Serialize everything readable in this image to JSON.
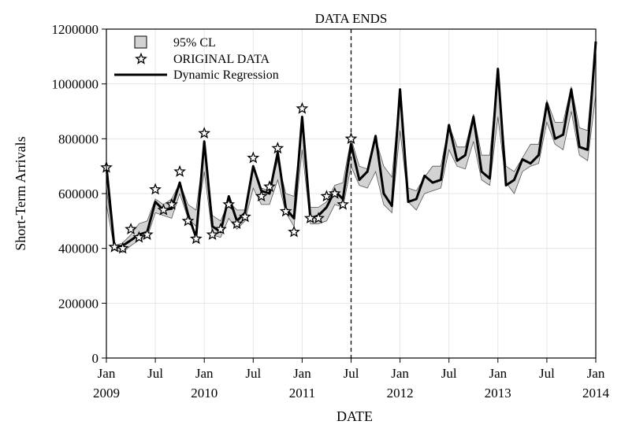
{
  "chart_data": {
    "type": "line",
    "title": "",
    "xlabel": "DATE",
    "ylabel": "Short-Term Arrivals",
    "ylim": [
      0,
      1200000
    ],
    "xlim": [
      "2009-01",
      "2014-01"
    ],
    "y_ticks": [
      0,
      200000,
      400000,
      600000,
      800000,
      1000000,
      1200000
    ],
    "y_tick_labels": [
      "0",
      "200000",
      "400000",
      "600000",
      "800000",
      "1000000",
      "1200000"
    ],
    "x_ticks": [
      {
        "month": "Jan",
        "year": "2009",
        "date": "2009-01"
      },
      {
        "month": "Jul",
        "year": "",
        "date": "2009-07"
      },
      {
        "month": "Jan",
        "year": "2010",
        "date": "2010-01"
      },
      {
        "month": "Jul",
        "year": "",
        "date": "2010-07"
      },
      {
        "month": "Jan",
        "year": "2011",
        "date": "2011-01"
      },
      {
        "month": "Jul",
        "year": "",
        "date": "2011-07"
      },
      {
        "month": "Jan",
        "year": "2012",
        "date": "2012-01"
      },
      {
        "month": "Jul",
        "year": "",
        "date": "2012-07"
      },
      {
        "month": "Jan",
        "year": "2013",
        "date": "2013-01"
      },
      {
        "month": "Jul",
        "year": "",
        "date": "2013-07"
      },
      {
        "month": "Jan",
        "year": "2014",
        "date": "2014-01"
      }
    ],
    "grid": true,
    "legend_position": "top-left",
    "annotations": [
      {
        "label": "DATA ENDS",
        "x": "2011-07",
        "style": "dashed vertical line"
      }
    ],
    "series": [
      {
        "name": "95% CL",
        "kind": "band",
        "color": "#d3d3d3",
        "x": [
          "2009-01",
          "2009-02",
          "2009-03",
          "2009-04",
          "2009-05",
          "2009-06",
          "2009-07",
          "2009-08",
          "2009-09",
          "2009-10",
          "2009-11",
          "2009-12",
          "2010-01",
          "2010-02",
          "2010-03",
          "2010-04",
          "2010-05",
          "2010-06",
          "2010-07",
          "2010-08",
          "2010-09",
          "2010-10",
          "2010-11",
          "2010-12",
          "2011-01",
          "2011-02",
          "2011-03",
          "2011-04",
          "2011-05",
          "2011-06",
          "2011-07",
          "2011-08",
          "2011-09",
          "2011-10",
          "2011-11",
          "2011-12",
          "2012-01",
          "2012-02",
          "2012-03",
          "2012-04",
          "2012-05",
          "2012-06",
          "2012-07",
          "2012-08",
          "2012-09",
          "2012-10",
          "2012-11",
          "2012-12",
          "2013-01",
          "2013-02",
          "2013-03",
          "2013-04",
          "2013-05",
          "2013-06",
          "2013-07",
          "2013-08",
          "2013-09",
          "2013-10",
          "2013-11",
          "2013-12",
          "2014-01"
        ],
        "lower": [
          560000,
          395000,
          385000,
          410000,
          430000,
          440000,
          530000,
          520000,
          510000,
          600000,
          510000,
          480000,
          680000,
          450000,
          440000,
          510000,
          470000,
          500000,
          620000,
          560000,
          560000,
          650000,
          530000,
          480000,
          760000,
          490000,
          490000,
          500000,
          560000,
          550000,
          700000,
          630000,
          620000,
          680000,
          560000,
          530000,
          830000,
          570000,
          540000,
          600000,
          610000,
          620000,
          760000,
          700000,
          690000,
          790000,
          650000,
          630000,
          880000,
          640000,
          600000,
          680000,
          700000,
          710000,
          860000,
          780000,
          760000,
          900000,
          740000,
          720000,
          960000
        ],
        "upper": [
          620000,
          410000,
          420000,
          450000,
          490000,
          500000,
          580000,
          560000,
          580000,
          640000,
          560000,
          540000,
          760000,
          520000,
          500000,
          570000,
          540000,
          540000,
          690000,
          620000,
          610000,
          720000,
          600000,
          590000,
          860000,
          550000,
          550000,
          570000,
          630000,
          640000,
          800000,
          700000,
          690000,
          800000,
          700000,
          660000,
          970000,
          620000,
          610000,
          660000,
          700000,
          700000,
          850000,
          770000,
          770000,
          890000,
          740000,
          740000,
          1040000,
          700000,
          680000,
          730000,
          780000,
          780000,
          940000,
          860000,
          860000,
          990000,
          840000,
          830000,
          1150000
        ]
      },
      {
        "name": "ORIGINAL DATA",
        "kind": "scatter",
        "marker": "star",
        "x": [
          "2009-01",
          "2009-02",
          "2009-03",
          "2009-04",
          "2009-05",
          "2009-06",
          "2009-07",
          "2009-08",
          "2009-09",
          "2009-10",
          "2009-11",
          "2009-12",
          "2010-01",
          "2010-02",
          "2010-03",
          "2010-04",
          "2010-05",
          "2010-06",
          "2010-07",
          "2010-08",
          "2010-09",
          "2010-10",
          "2010-11",
          "2010-12",
          "2011-01",
          "2011-02",
          "2011-03",
          "2011-04",
          "2011-05",
          "2011-06",
          "2011-07"
        ],
        "values": [
          695000,
          405000,
          400000,
          470000,
          440000,
          450000,
          615000,
          540000,
          560000,
          680000,
          500000,
          435000,
          820000,
          450000,
          470000,
          560000,
          490000,
          515000,
          730000,
          590000,
          625000,
          765000,
          535000,
          460000,
          910000,
          510000,
          510000,
          590000,
          600000,
          560000,
          800000
        ]
      },
      {
        "name": "Dynamic Regression",
        "kind": "line",
        "color": "#000000",
        "x": [
          "2009-01",
          "2009-02",
          "2009-03",
          "2009-04",
          "2009-05",
          "2009-06",
          "2009-07",
          "2009-08",
          "2009-09",
          "2009-10",
          "2009-11",
          "2009-12",
          "2010-01",
          "2010-02",
          "2010-03",
          "2010-04",
          "2010-05",
          "2010-06",
          "2010-07",
          "2010-08",
          "2010-09",
          "2010-10",
          "2010-11",
          "2010-12",
          "2011-01",
          "2011-02",
          "2011-03",
          "2011-04",
          "2011-05",
          "2011-06",
          "2011-07",
          "2011-08",
          "2011-09",
          "2011-10",
          "2011-11",
          "2011-12",
          "2012-01",
          "2012-02",
          "2012-03",
          "2012-04",
          "2012-05",
          "2012-06",
          "2012-07",
          "2012-08",
          "2012-09",
          "2012-10",
          "2012-11",
          "2012-12",
          "2013-01",
          "2013-02",
          "2013-03",
          "2013-04",
          "2013-05",
          "2013-06",
          "2013-07",
          "2013-08",
          "2013-09",
          "2013-10",
          "2013-11",
          "2013-12",
          "2014-01"
        ],
        "values": [
          700000,
          400000,
          410000,
          430000,
          450000,
          460000,
          570000,
          540000,
          545000,
          640000,
          525000,
          440000,
          790000,
          480000,
          460000,
          590000,
          500000,
          530000,
          700000,
          610000,
          600000,
          750000,
          545000,
          510000,
          880000,
          510000,
          520000,
          550000,
          610000,
          580000,
          780000,
          650000,
          680000,
          810000,
          600000,
          555000,
          980000,
          570000,
          580000,
          665000,
          640000,
          650000,
          850000,
          720000,
          740000,
          880000,
          680000,
          655000,
          1055000,
          630000,
          650000,
          725000,
          710000,
          740000,
          930000,
          800000,
          815000,
          980000,
          770000,
          760000,
          1155000
        ]
      }
    ]
  }
}
